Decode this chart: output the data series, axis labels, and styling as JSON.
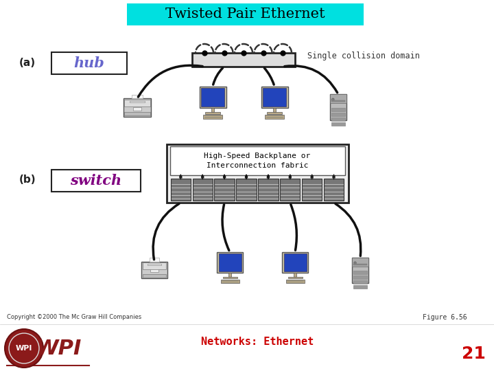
{
  "title": "Twisted Pair Ethernet",
  "title_bg": "#00e0e0",
  "title_color": "#000000",
  "label_a": "(a)",
  "label_b": "(b)",
  "hub_text": "hub",
  "switch_text": "switch",
  "single_collision": "Single collision domain",
  "backplane_text": "High-Speed Backplane or\nInterconnection fabric",
  "copyright": "Copyright ©2000 The Mc Graw Hill Companies",
  "figure_label": "Figure 6.56",
  "networks_label": "Networks: Ethernet",
  "page_number": "21",
  "bg_color": "#ffffff",
  "hub_color": "#6666cc",
  "switch_color": "#800080",
  "accent_color": "#cc0000"
}
